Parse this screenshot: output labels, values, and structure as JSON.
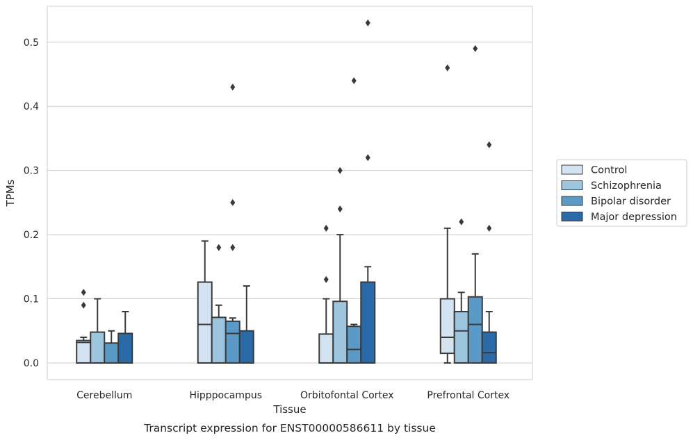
{
  "chart_data": {
    "type": "box",
    "caption": "Transcript expression for ENST00000586611 by tissue",
    "xlabel": "Tissue",
    "ylabel": "TPMs",
    "ylim": [
      -0.026,
      0.556
    ],
    "yticks": [
      0.0,
      0.1,
      0.2,
      0.3,
      0.4,
      0.5
    ],
    "ytick_labels": [
      "0.0",
      "0.1",
      "0.2",
      "0.3",
      "0.4",
      "0.5"
    ],
    "grid": "horizontal",
    "legend_position": "right-outside",
    "categories": [
      "Cerebellum",
      "Hipppocampus",
      "Orbitofontal Cortex",
      "Prefrontal Cortex"
    ],
    "series": [
      {
        "name": "Control",
        "color": "#d4e3f1",
        "boxes": [
          {
            "whislo": 0.0,
            "q1": 0.0,
            "med": 0.032,
            "q3": 0.035,
            "whishi": 0.04,
            "fliers": [
              0.11,
              0.09
            ]
          },
          {
            "whislo": 0.0,
            "q1": 0.0,
            "med": 0.06,
            "q3": 0.126,
            "whishi": 0.19,
            "fliers": []
          },
          {
            "whislo": 0.0,
            "q1": 0.0,
            "med": 0.0,
            "q3": 0.045,
            "whishi": 0.1,
            "fliers": [
              0.21,
              0.13
            ]
          },
          {
            "whislo": 0.0,
            "q1": 0.015,
            "med": 0.04,
            "q3": 0.1,
            "whishi": 0.21,
            "fliers": [
              0.46
            ]
          }
        ]
      },
      {
        "name": "Schizophrenia",
        "color": "#9dc5de",
        "boxes": [
          {
            "whislo": 0.0,
            "q1": 0.0,
            "med": 0.0,
            "q3": 0.048,
            "whishi": 0.1,
            "fliers": []
          },
          {
            "whislo": 0.0,
            "q1": 0.0,
            "med": 0.0,
            "q3": 0.071,
            "whishi": 0.09,
            "fliers": [
              0.18
            ]
          },
          {
            "whislo": 0.0,
            "q1": 0.0,
            "med": 0.0,
            "q3": 0.096,
            "whishi": 0.2,
            "fliers": [
              0.3,
              0.24
            ]
          },
          {
            "whislo": 0.0,
            "q1": 0.0,
            "med": 0.05,
            "q3": 0.08,
            "whishi": 0.11,
            "fliers": [
              0.22
            ]
          }
        ]
      },
      {
        "name": "Bipolar disorder",
        "color": "#5b9ac7",
        "boxes": [
          {
            "whislo": 0.0,
            "q1": 0.0,
            "med": 0.0,
            "q3": 0.031,
            "whishi": 0.05,
            "fliers": []
          },
          {
            "whislo": 0.0,
            "q1": 0.0,
            "med": 0.046,
            "q3": 0.065,
            "whishi": 0.07,
            "fliers": [
              0.43,
              0.25,
              0.18
            ]
          },
          {
            "whislo": 0.0,
            "q1": 0.0,
            "med": 0.021,
            "q3": 0.057,
            "whishi": 0.06,
            "fliers": [
              0.44
            ]
          },
          {
            "whislo": 0.0,
            "q1": 0.0,
            "med": 0.06,
            "q3": 0.103,
            "whishi": 0.17,
            "fliers": [
              0.49
            ]
          }
        ]
      },
      {
        "name": "Major depression",
        "color": "#2a6aa8",
        "boxes": [
          {
            "whislo": 0.0,
            "q1": 0.0,
            "med": 0.0,
            "q3": 0.046,
            "whishi": 0.08,
            "fliers": []
          },
          {
            "whislo": 0.0,
            "q1": 0.0,
            "med": 0.0,
            "q3": 0.05,
            "whishi": 0.12,
            "fliers": []
          },
          {
            "whislo": 0.0,
            "q1": 0.0,
            "med": 0.0,
            "q3": 0.126,
            "whishi": 0.15,
            "fliers": [
              0.53,
              0.32
            ]
          },
          {
            "whislo": 0.0,
            "q1": 0.0,
            "med": 0.016,
            "q3": 0.048,
            "whishi": 0.08,
            "fliers": [
              0.34,
              0.21
            ]
          }
        ]
      }
    ],
    "colors": {
      "axes_edge": "#cccccc",
      "grid": "#cccccc",
      "box_edge": "#3a3a3a",
      "flier": "#3a3a3a",
      "text": "#262626"
    }
  }
}
